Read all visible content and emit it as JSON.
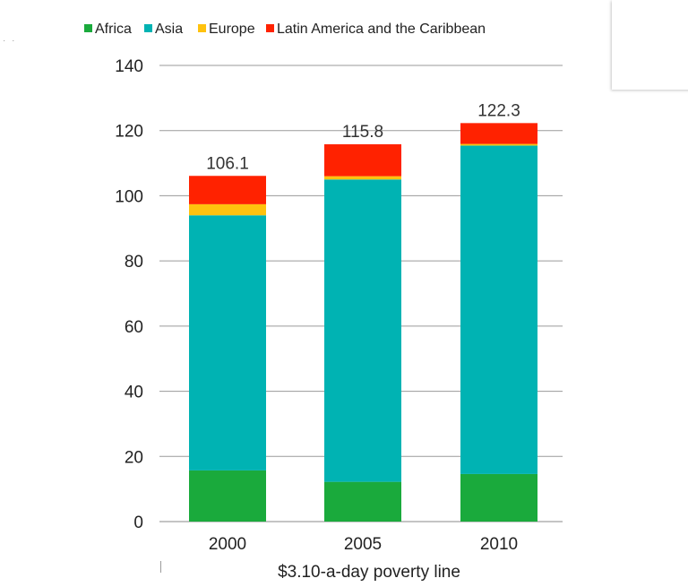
{
  "chart_data": {
    "type": "bar",
    "stacked": true,
    "categories": [
      "2000",
      "2005",
      "2010"
    ],
    "series": [
      {
        "name": "Africa",
        "color": "#1aaa3c",
        "values": [
          15.7,
          12.2,
          14.6
        ]
      },
      {
        "name": "Asia",
        "color": "#00b3b3",
        "values": [
          78.3,
          92.8,
          100.8
        ]
      },
      {
        "name": "Europe",
        "color": "#ffc20e",
        "values": [
          3.4,
          1.0,
          0.5
        ]
      },
      {
        "name": "Latin America and the Caribbean",
        "color": "#ff2200",
        "values": [
          8.7,
          9.8,
          6.4
        ]
      }
    ],
    "totals": [
      "106.1",
      "115.8",
      "122.3"
    ],
    "xlabel": "$3.10-a-day poverty line",
    "ylabel": "",
    "ylim": [
      0,
      140
    ],
    "yticks": [
      0,
      20,
      40,
      60,
      80,
      100,
      120,
      140
    ],
    "grid": true,
    "legend_position": "top"
  }
}
